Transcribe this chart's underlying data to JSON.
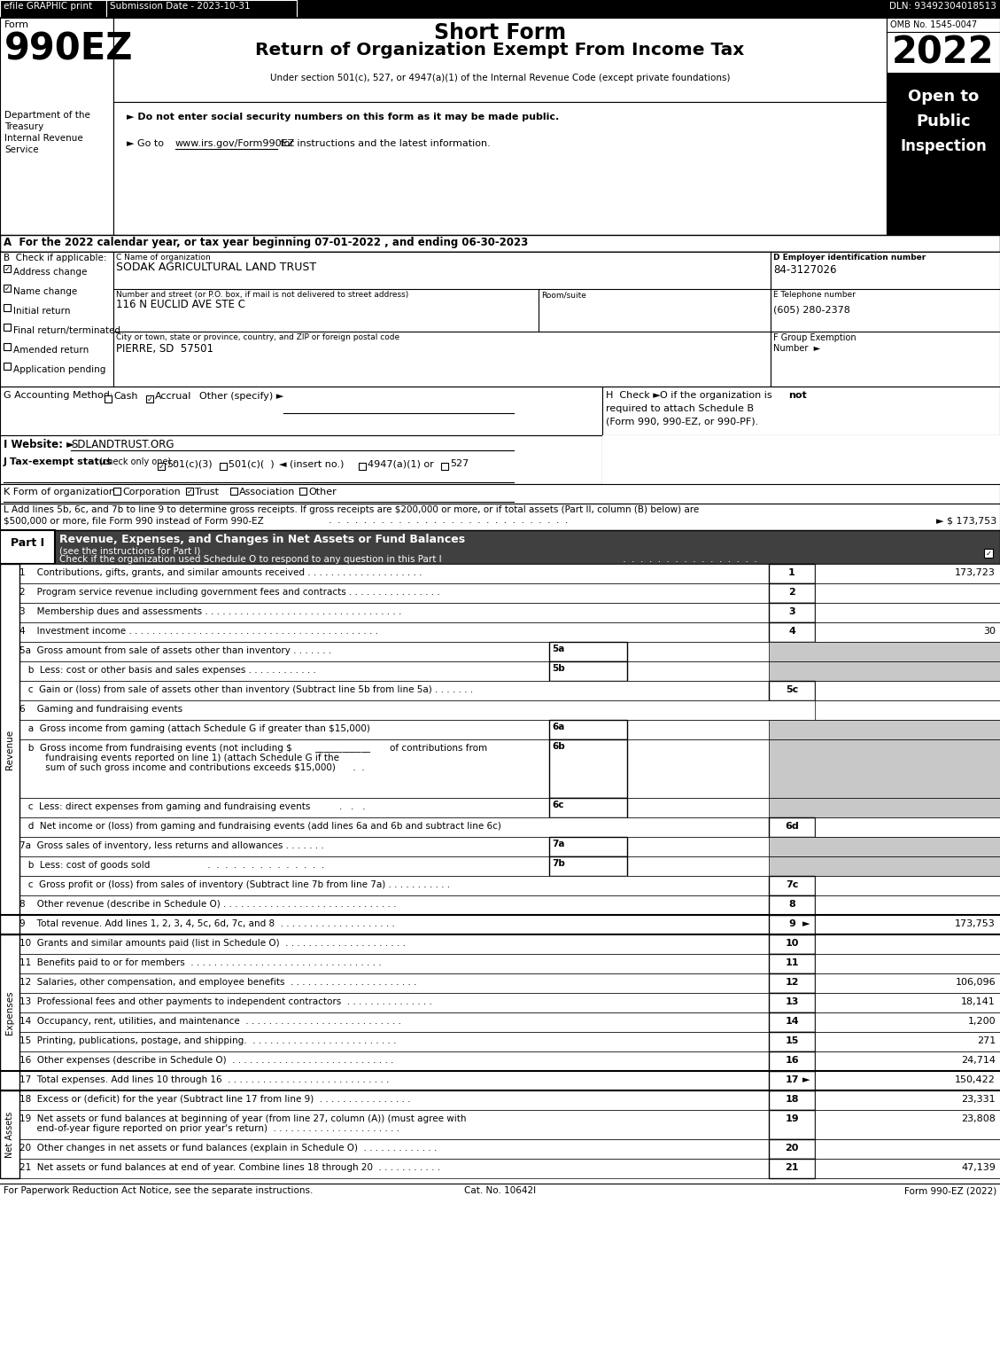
{
  "efile_text": "efile GRAPHIC print",
  "submission_text": "Submission Date - 2023-10-31",
  "dln_text": "DLN: 93492304018513",
  "form_label": "Form",
  "form_number": "990EZ",
  "form_title1": "Short Form",
  "form_title2": "Return of Organization Exempt From Income Tax",
  "under_section": "Under section 501(c), 527, or 4947(a)(1) of the Internal Revenue Code (except private foundations)",
  "dept_lines": [
    "Department of the",
    "Treasury",
    "Internal Revenue",
    "Service"
  ],
  "do_not_enter": "► Do not enter social security numbers on this form as it may be made public.",
  "go_to_pre": "► Go to ",
  "go_to_link": "www.irs.gov/Form990EZ",
  "go_to_post": " for instructions and the latest information.",
  "omb_text": "OMB No. 1545-0047",
  "year": "2022",
  "open_to": "Open to",
  "public": "Public",
  "inspection": "Inspection",
  "line_A": "A  For the 2022 calendar year, or tax year beginning 07-01-2022 , and ending 06-30-2023",
  "org_name": "SODAK AGRICULTURAL LAND TRUST",
  "street_addr": "116 N EUCLID AVE STE C",
  "city_addr": "PIERRE, SD  57501",
  "ein": "84-3127026",
  "phone": "(605) 280-2378",
  "footer_left": "For Paperwork Reduction Act Notice, see the separate instructions.",
  "footer_cat": "Cat. No. 10642I",
  "footer_right": "Form 990-EZ (2022)"
}
